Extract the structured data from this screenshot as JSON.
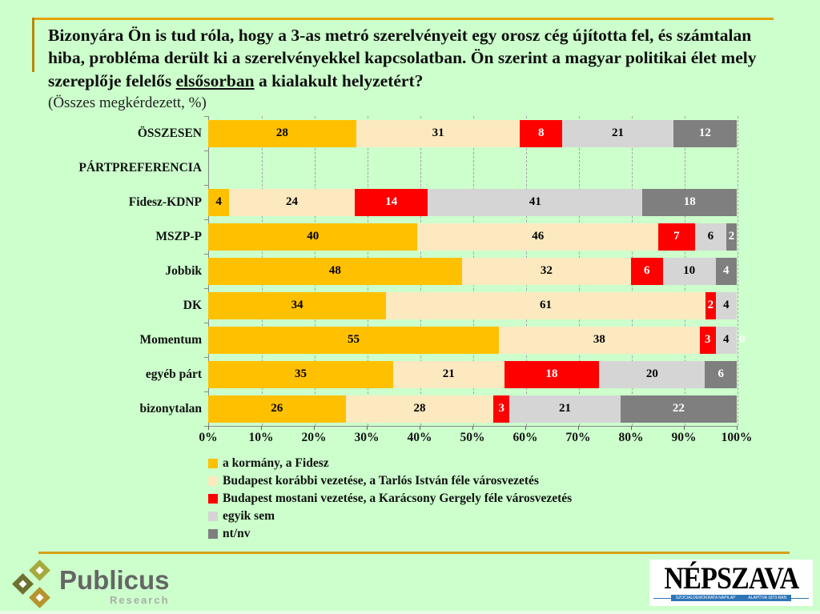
{
  "title": {
    "part1": "Bizonyára Ön is tud róla, hogy a 3-as metró szerelvényeit egy orosz cég újította fel, és számtalan hiba, probléma derült ki a szerelvényekkel kapcsolatban. Ön szerint a magyar politikai élet mely szereplője felelős ",
    "underline": "elsősorban",
    "part2": " a kialakult helyzetért?"
  },
  "subtitle": "(Összes megkérdezett, %)",
  "colors": {
    "background": "#CCFFCC",
    "rule": "#D4A017"
  },
  "chart_data": {
    "type": "bar",
    "stacked": true,
    "orientation": "horizontal",
    "unit": "%",
    "xlim": [
      0,
      100
    ],
    "x_ticks": [
      "0%",
      "10%",
      "20%",
      "30%",
      "40%",
      "50%",
      "60%",
      "70%",
      "80%",
      "90%",
      "100%"
    ],
    "grid": "dashed-vertical",
    "legend_position": "bottom-left",
    "series": [
      {
        "name": "a kormány, a Fidesz",
        "color": "#FFC000",
        "label_color": "#000000"
      },
      {
        "name": "Budapest korábbi vezetése, a Tarlós István féle városvezetés",
        "color": "#FCE9C0",
        "label_color": "#000000"
      },
      {
        "name": "Budapest mostani vezetése, a Karácsony Gergely féle városvezetés",
        "color": "#FF0000",
        "label_color": "#FFFFFF"
      },
      {
        "name": "egyik sem",
        "color": "#D5D5D5",
        "label_color": "#000000"
      },
      {
        "name": "nt/nv",
        "color": "#7F7F7F",
        "label_color": "#FFFFFF"
      }
    ],
    "rows": [
      {
        "label": "ÖSSZESEN",
        "values": [
          28,
          31,
          8,
          21,
          12
        ]
      },
      {
        "label": "PÁRTPREFERENCIA",
        "header": true,
        "values": []
      },
      {
        "label": "Fidesz-KDNP",
        "values": [
          4,
          24,
          14,
          41,
          18
        ]
      },
      {
        "label": "MSZP-P",
        "values": [
          40,
          46,
          7,
          6,
          2
        ]
      },
      {
        "label": "Jobbik",
        "values": [
          48,
          32,
          6,
          10,
          4
        ]
      },
      {
        "label": "DK",
        "values": [
          34,
          61,
          2,
          4,
          0
        ]
      },
      {
        "label": "Momentum",
        "values": [
          55,
          38,
          3,
          4,
          0
        ],
        "zero_label": "0"
      },
      {
        "label": "egyéb párt",
        "values": [
          35,
          21,
          18,
          20,
          6
        ]
      },
      {
        "label": "bizonytalan",
        "values": [
          26,
          28,
          3,
          21,
          22
        ]
      }
    ]
  },
  "footer": {
    "publicus": {
      "name": "Publicus",
      "sub": "Research"
    },
    "nepszava": {
      "name": "NÉPSZAVA",
      "tagline_left": "SZOCIÁLDEMOKRATA NAPILAP",
      "tagline_right": "ALAPÍTVA 1873-BAN"
    }
  }
}
